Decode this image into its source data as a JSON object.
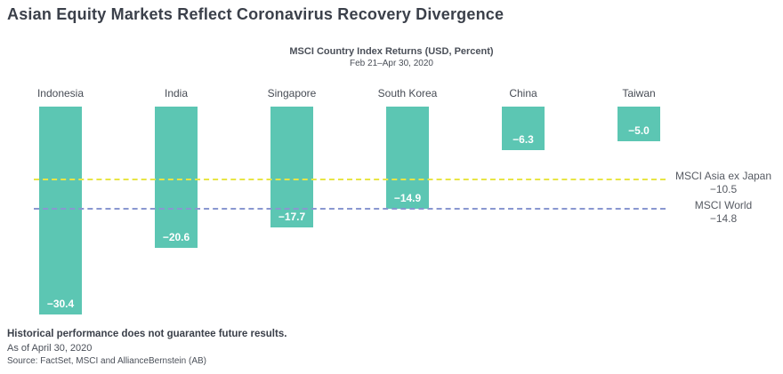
{
  "title": "Asian Equity Markets Reflect Coronavirus Recovery Divergence",
  "chart_data": {
    "type": "bar",
    "title": "MSCI Country Index Returns (USD, Percent)",
    "subtitle": "Feb 21–Apr 30, 2020",
    "categories": [
      "Indonesia",
      "India",
      "Singapore",
      "South Korea",
      "China",
      "Taiwan"
    ],
    "values": [
      -30.4,
      -20.6,
      -17.7,
      -14.9,
      -6.3,
      -5.0
    ],
    "value_labels": [
      "−30.4",
      "−20.6",
      "−17.7",
      "−14.9",
      "−6.3",
      "−5.0"
    ],
    "bar_color": "#5cc6b3",
    "ylim": [
      -32,
      0
    ],
    "grid": false,
    "reference_lines": [
      {
        "name": "MSCI Asia ex Japan",
        "value": -10.5,
        "label_value": "−10.5",
        "color": "#e8e545"
      },
      {
        "name": "MSCI World",
        "value": -14.8,
        "label_value": "−14.8",
        "color": "#8997d0"
      }
    ]
  },
  "footer": {
    "disclaimer": "Historical performance does not guarantee future results.",
    "as_of": "As of April 30, 2020",
    "source": "Source: FactSet, MSCI and AllianceBernstein (AB)"
  }
}
